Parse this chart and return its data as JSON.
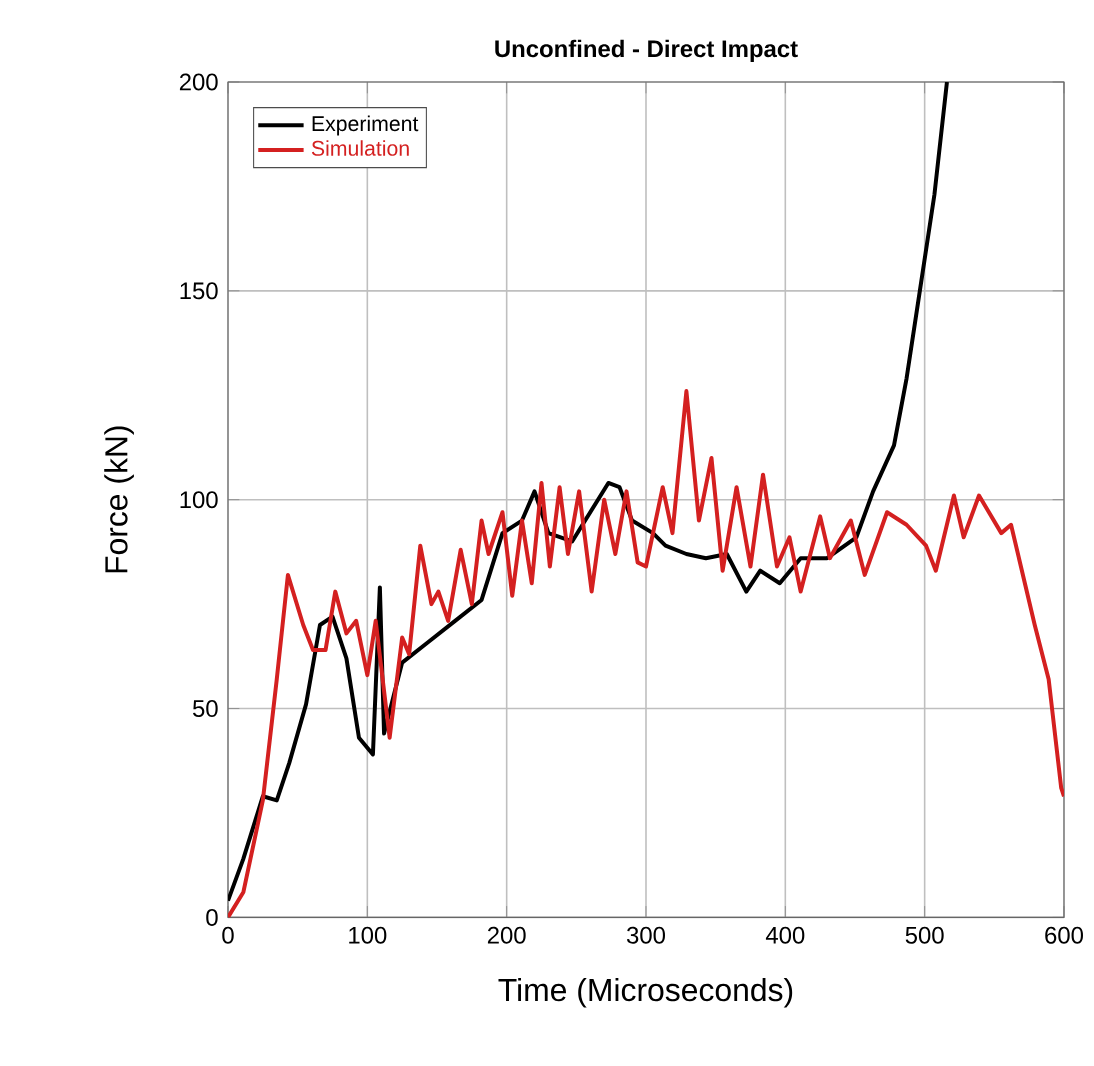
{
  "chart_data": {
    "type": "line",
    "title": "Unconfined - Direct Impact",
    "xlabel": "Time (Microseconds)",
    "ylabel": "Force (kN)",
    "xlim": [
      0,
      600
    ],
    "ylim": [
      0,
      200
    ],
    "xticks": [
      0,
      100,
      200,
      300,
      400,
      500,
      600
    ],
    "yticks": [
      0,
      50,
      100,
      150,
      200
    ],
    "grid": true,
    "legend": "top left",
    "line_style": "solid",
    "marker": "none",
    "series": [
      {
        "name": "Experiment",
        "color": "#000000",
        "x": [
          0,
          11,
          25,
          35,
          44,
          56,
          66,
          75,
          85,
          94,
          104,
          109,
          112,
          125,
          144,
          163,
          182,
          197,
          211,
          220,
          230,
          247,
          273,
          281,
          290,
          305,
          314,
          329,
          343,
          358,
          372,
          382,
          396,
          411,
          430,
          451,
          463,
          478,
          487,
          497,
          507,
          516
        ],
        "values": [
          4,
          14,
          29,
          28,
          37,
          51,
          70,
          72,
          62,
          43,
          39,
          79,
          44,
          61,
          66,
          71,
          76,
          92,
          95,
          102,
          92,
          90,
          104,
          103,
          95,
          92,
          89,
          87,
          86,
          87,
          78,
          83,
          80,
          86,
          86,
          91,
          102,
          113,
          129,
          151,
          173,
          200
        ]
      },
      {
        "name": "Simulation",
        "color": "#d42020",
        "x": [
          0,
          11,
          25,
          35,
          43,
          54,
          61,
          70,
          77,
          85,
          92,
          100,
          106,
          116,
          125,
          130,
          138,
          146,
          151,
          158,
          167,
          175,
          182,
          187,
          197,
          204,
          211,
          218,
          225,
          231,
          238,
          244,
          252,
          261,
          270,
          278,
          286,
          294,
          300,
          312,
          319,
          329,
          338,
          347,
          355,
          365,
          375,
          384,
          394,
          403,
          411,
          425,
          432,
          447,
          457,
          473,
          487,
          501,
          508,
          521,
          528,
          539,
          555,
          562,
          579,
          589,
          598,
          600
        ],
        "values": [
          0,
          6,
          28,
          57,
          82,
          70,
          64,
          64,
          78,
          68,
          71,
          58,
          71,
          43,
          67,
          63,
          89,
          75,
          78,
          71,
          88,
          75,
          95,
          87,
          97,
          77,
          95,
          80,
          104,
          84,
          103,
          87,
          102,
          78,
          100,
          87,
          102,
          85,
          84,
          103,
          92,
          126,
          95,
          110,
          83,
          103,
          84,
          106,
          84,
          91,
          78,
          96,
          86,
          95,
          82,
          97,
          94,
          89,
          83,
          101,
          91,
          101,
          92,
          94,
          70,
          57,
          31,
          29
        ]
      }
    ]
  }
}
